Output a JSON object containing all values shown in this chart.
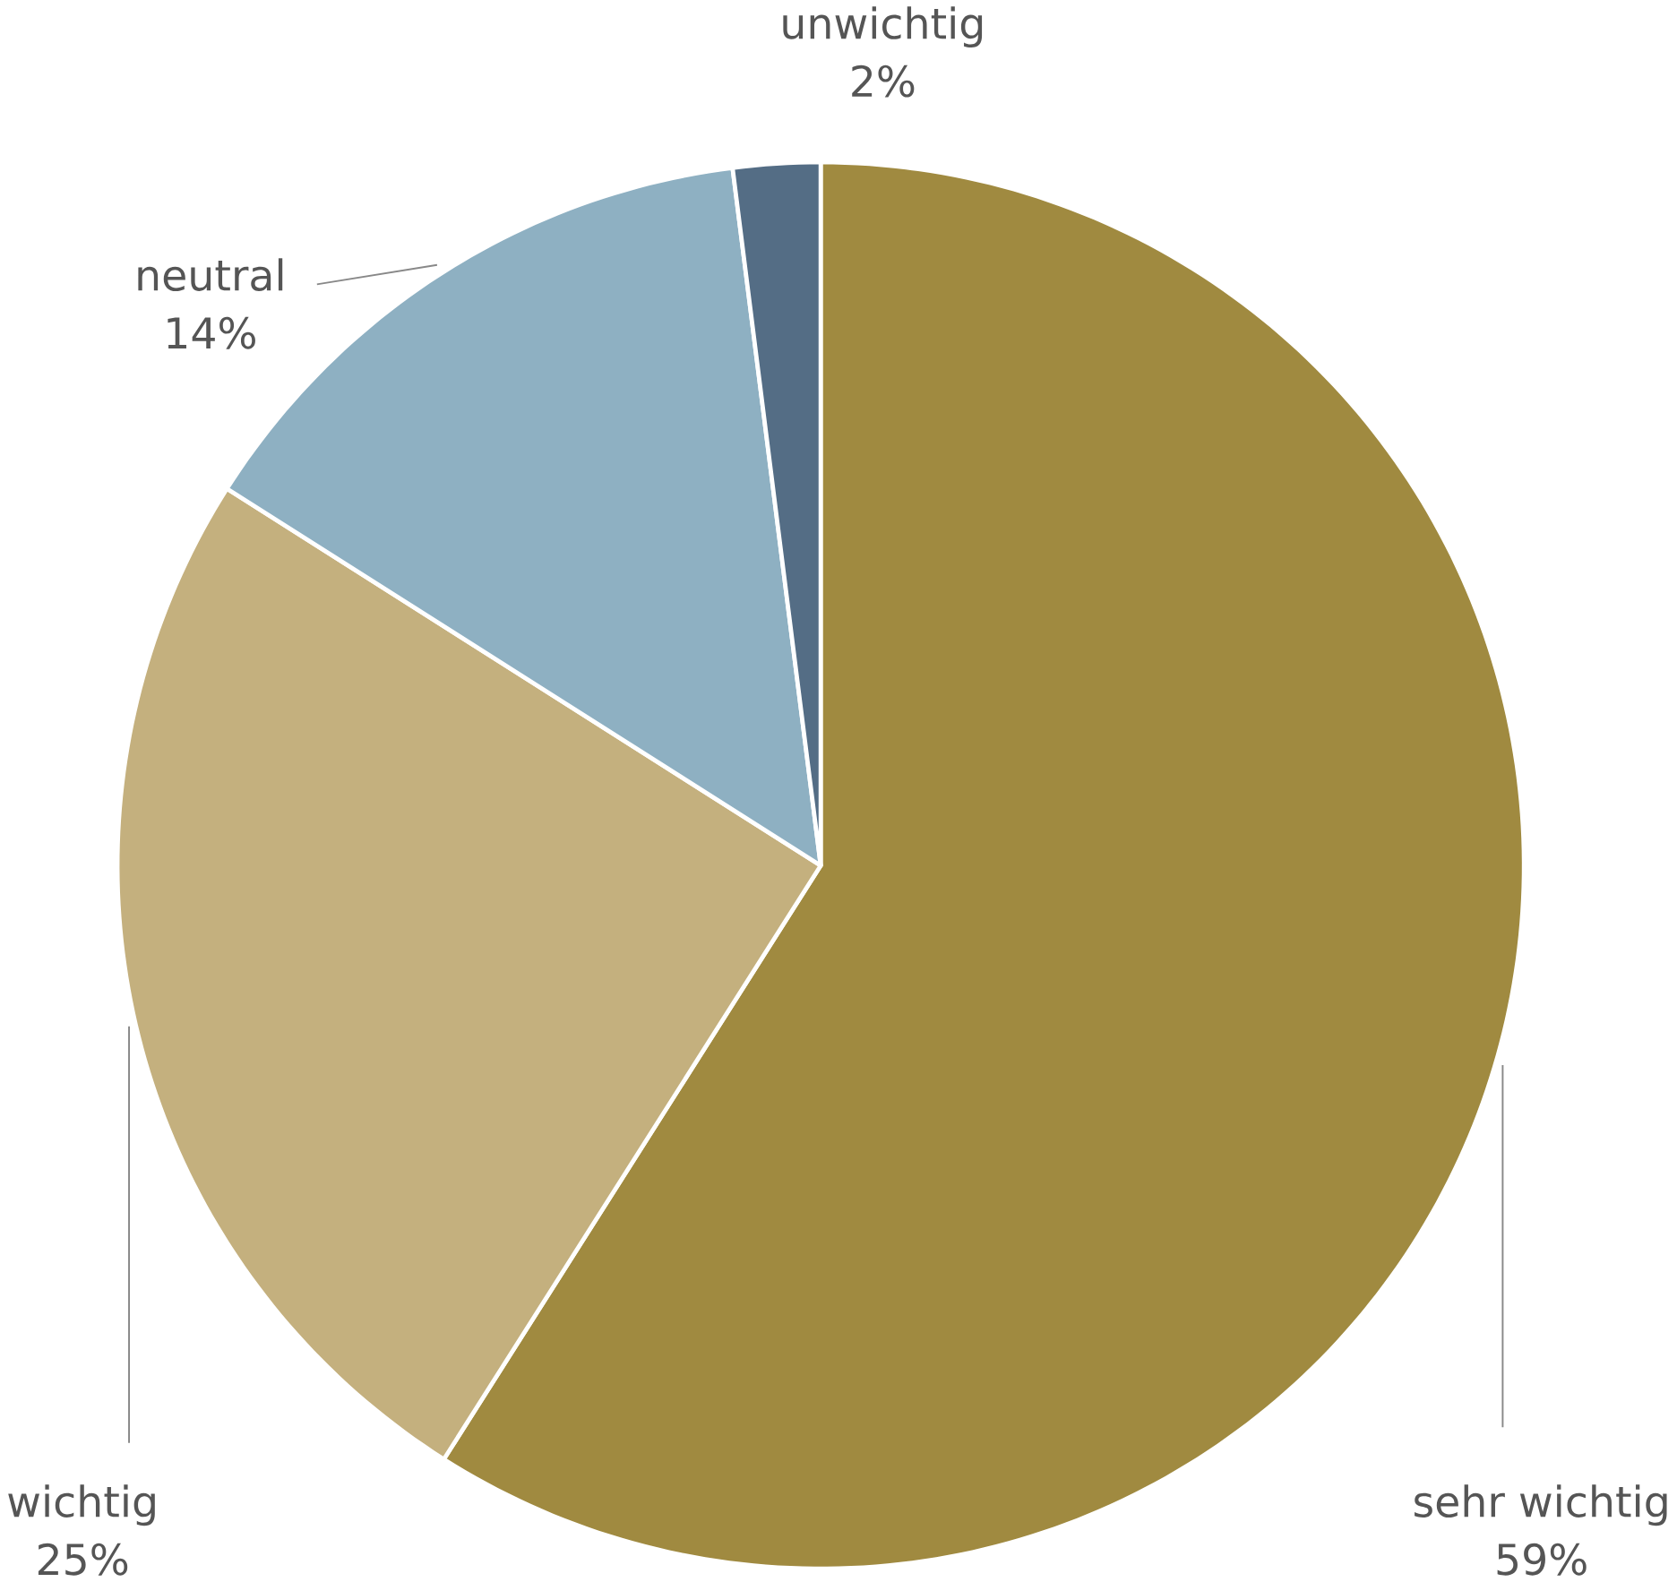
{
  "chart_data": {
    "type": "pie",
    "categories": [
      "sehr wichtig",
      "wichtig",
      "neutral",
      "unwichtig"
    ],
    "values": [
      59,
      25,
      14,
      2
    ],
    "colors": [
      "#a08a40",
      "#c4b07e",
      "#8eb0c2",
      "#546d85"
    ],
    "value_labels": [
      "59%",
      "25%",
      "14%",
      "2%"
    ]
  }
}
